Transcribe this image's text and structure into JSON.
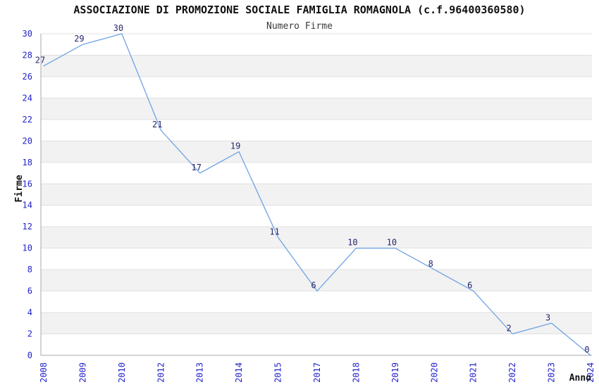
{
  "chart_data": {
    "type": "line",
    "title": "ASSOCIAZIONE DI PROMOZIONE SOCIALE FAMIGLIA ROMAGNOLA (c.f.96400360580)",
    "subtitle": "Numero Firme",
    "xlabel": "Anno",
    "ylabel": "Firme",
    "categories": [
      "2008",
      "2009",
      "2010",
      "2012",
      "2013",
      "2014",
      "2015",
      "2017",
      "2018",
      "2019",
      "2020",
      "2021",
      "2022",
      "2023",
      "2024"
    ],
    "values": [
      27,
      29,
      30,
      21,
      17,
      19,
      11,
      6,
      10,
      10,
      8,
      6,
      2,
      3,
      0
    ],
    "ylim": [
      0,
      30
    ],
    "ytick_step": 2,
    "yticks": [
      0,
      2,
      4,
      6,
      8,
      10,
      12,
      14,
      16,
      18,
      20,
      22,
      24,
      26,
      28,
      30
    ],
    "grid": "horizontal-bands-alternating",
    "legend": "none",
    "data_labels_visible": true,
    "colors": {
      "line": "#6FA3E3",
      "tick_label": "#2222CC",
      "data_label": "#26266E",
      "band": "#F2F2F2",
      "gridline": "#E0E0E0",
      "axis": "#A9A9A9",
      "background": "#FFFFFF"
    }
  }
}
